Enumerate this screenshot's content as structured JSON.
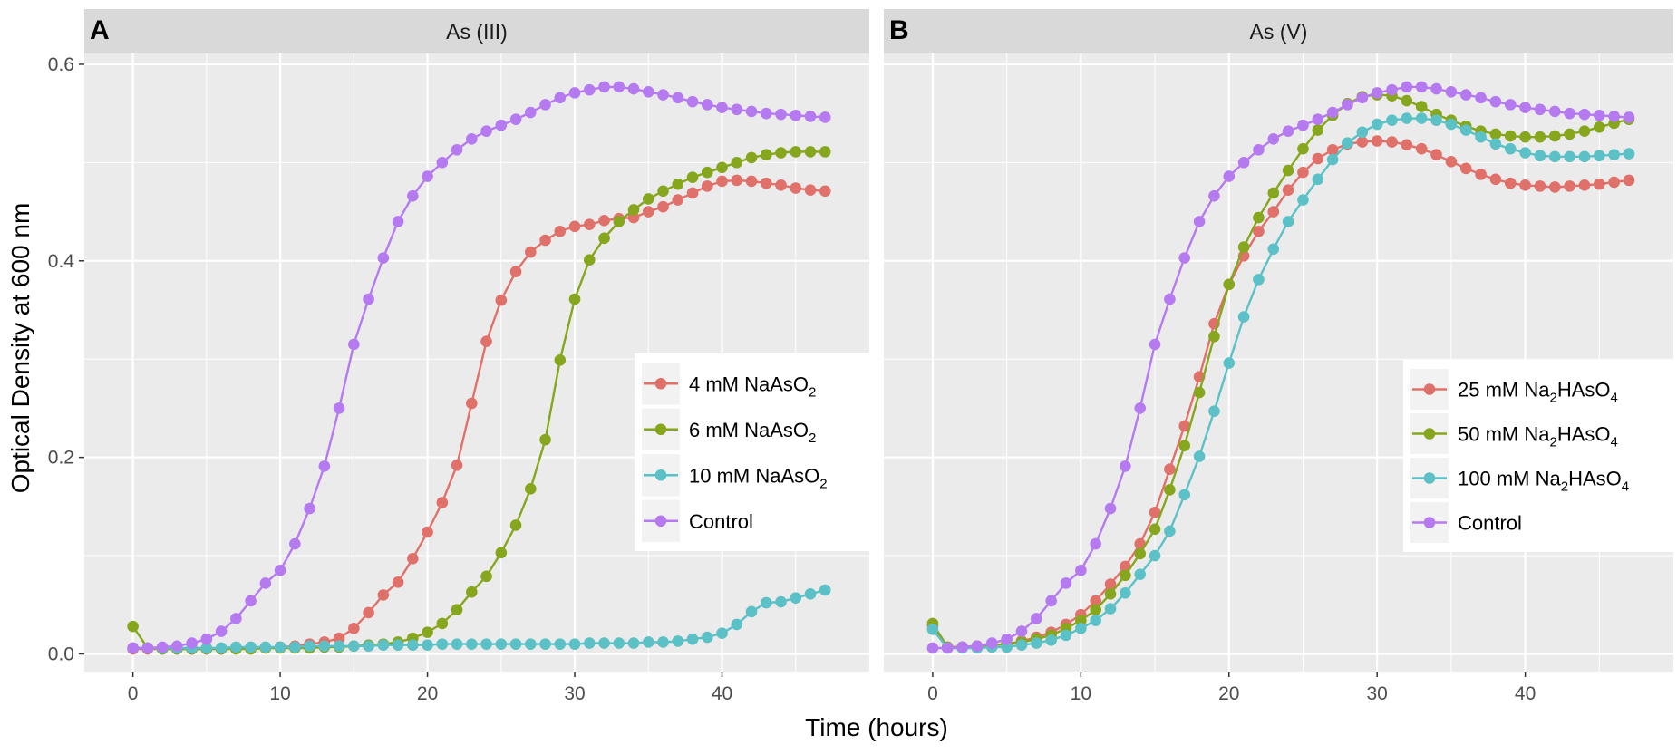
{
  "figure": {
    "xlabel": "Time (hours)",
    "ylabel": "Optical Density at 600 nm"
  },
  "colors": {
    "red": "#E0716A",
    "green": "#86A61D",
    "cyan": "#5BC1C6",
    "purple": "#B67AF0",
    "panel_bg": "#EBEBEB",
    "strip_bg": "#D9D9D9",
    "grid": "#FFFFFF"
  },
  "chart_data": [
    {
      "type": "line",
      "panel_letter": "A",
      "title": "As (III)",
      "xlabel": "Time (hours)",
      "ylabel": "Optical Density at 600 nm",
      "xlim": [
        -3.3,
        50
      ],
      "ylim": [
        -0.018,
        0.611
      ],
      "x_ticks": [
        "0",
        "10",
        "20",
        "30",
        "40"
      ],
      "y_ticks": [
        "0.0",
        "0.2",
        "0.4",
        "0.6"
      ],
      "legend_position": "right",
      "x": [
        0,
        1,
        2,
        3,
        4,
        5,
        6,
        7,
        8,
        9,
        10,
        11,
        12,
        13,
        14,
        15,
        16,
        17,
        18,
        19,
        20,
        21,
        22,
        23,
        24,
        25,
        26,
        27,
        28,
        29,
        30,
        31,
        32,
        33,
        34,
        35,
        36,
        37,
        38,
        39,
        40,
        41,
        42,
        43,
        44,
        45,
        46,
        47
      ],
      "series": [
        {
          "name": "4 mM NaAsO2",
          "label_main": "4 mM NaAsO",
          "label_sub": "2",
          "label_tail": "",
          "color": "#E0716A",
          "values": [
            0.005,
            0.005,
            0.005,
            0.005,
            0.005,
            0.005,
            0.005,
            0.006,
            0.006,
            0.006,
            0.007,
            0.008,
            0.01,
            0.012,
            0.016,
            0.026,
            0.042,
            0.06,
            0.073,
            0.097,
            0.124,
            0.154,
            0.192,
            0.255,
            0.318,
            0.36,
            0.389,
            0.409,
            0.421,
            0.43,
            0.435,
            0.437,
            0.441,
            0.443,
            0.444,
            0.45,
            0.455,
            0.462,
            0.469,
            0.476,
            0.481,
            0.482,
            0.481,
            0.479,
            0.477,
            0.474,
            0.472,
            0.471
          ]
        },
        {
          "name": "6 mM NaAsO2",
          "label_main": "6 mM NaAsO",
          "label_sub": "2",
          "label_tail": "",
          "color": "#86A61D",
          "values": [
            0.028,
            0.006,
            0.005,
            0.005,
            0.005,
            0.005,
            0.005,
            0.005,
            0.005,
            0.006,
            0.006,
            0.006,
            0.006,
            0.007,
            0.007,
            0.008,
            0.009,
            0.01,
            0.012,
            0.016,
            0.022,
            0.031,
            0.045,
            0.063,
            0.079,
            0.103,
            0.131,
            0.168,
            0.218,
            0.299,
            0.361,
            0.401,
            0.423,
            0.44,
            0.452,
            0.463,
            0.471,
            0.478,
            0.485,
            0.49,
            0.495,
            0.5,
            0.505,
            0.508,
            0.51,
            0.511,
            0.511,
            0.511
          ]
        },
        {
          "name": "10 mM NaAsO2",
          "label_main": "10 mM NaAsO",
          "label_sub": "2",
          "label_tail": "",
          "color": "#5BC1C6",
          "values": [
            0.006,
            0.006,
            0.006,
            0.006,
            0.006,
            0.006,
            0.006,
            0.007,
            0.007,
            0.007,
            0.007,
            0.007,
            0.008,
            0.008,
            0.008,
            0.008,
            0.008,
            0.009,
            0.009,
            0.009,
            0.009,
            0.01,
            0.01,
            0.01,
            0.01,
            0.01,
            0.01,
            0.01,
            0.01,
            0.01,
            0.01,
            0.011,
            0.011,
            0.011,
            0.011,
            0.012,
            0.012,
            0.013,
            0.015,
            0.017,
            0.021,
            0.03,
            0.043,
            0.052,
            0.053,
            0.057,
            0.061,
            0.065
          ]
        },
        {
          "name": "Control",
          "label_main": "Control",
          "label_sub": "",
          "label_tail": "",
          "color": "#B67AF0",
          "values": [
            0.006,
            0.006,
            0.007,
            0.008,
            0.011,
            0.015,
            0.023,
            0.036,
            0.054,
            0.072,
            0.085,
            0.112,
            0.148,
            0.191,
            0.25,
            0.315,
            0.361,
            0.403,
            0.44,
            0.466,
            0.486,
            0.5,
            0.513,
            0.524,
            0.532,
            0.538,
            0.544,
            0.551,
            0.559,
            0.566,
            0.571,
            0.574,
            0.577,
            0.577,
            0.575,
            0.572,
            0.569,
            0.566,
            0.562,
            0.559,
            0.556,
            0.554,
            0.552,
            0.55,
            0.549,
            0.548,
            0.547,
            0.546
          ]
        }
      ]
    },
    {
      "type": "line",
      "panel_letter": "B",
      "title": "As (V)",
      "xlabel": "Time (hours)",
      "ylabel": "Optical Density at 600 nm",
      "xlim": [
        -3.3,
        50
      ],
      "ylim": [
        -0.018,
        0.611
      ],
      "x_ticks": [
        "0",
        "10",
        "20",
        "30",
        "40"
      ],
      "y_ticks": [
        "0.0",
        "0.2",
        "0.4",
        "0.6"
      ],
      "legend_position": "right",
      "x": [
        0,
        1,
        2,
        3,
        4,
        5,
        6,
        7,
        8,
        9,
        10,
        11,
        12,
        13,
        14,
        15,
        16,
        17,
        18,
        19,
        20,
        21,
        22,
        23,
        24,
        25,
        26,
        27,
        28,
        29,
        30,
        31,
        32,
        33,
        34,
        35,
        36,
        37,
        38,
        39,
        40,
        41,
        42,
        43,
        44,
        45,
        46,
        47
      ],
      "series": [
        {
          "name": "25 mM Na2HAsO4",
          "label_main": "25 mM Na",
          "label_sub": "2",
          "label_tail": "HAsO",
          "label_sub2": "4",
          "color": "#E0716A",
          "values": [
            0.029,
            0.007,
            0.007,
            0.008,
            0.009,
            0.01,
            0.013,
            0.017,
            0.022,
            0.03,
            0.04,
            0.054,
            0.071,
            0.089,
            0.112,
            0.144,
            0.188,
            0.232,
            0.282,
            0.336,
            0.376,
            0.405,
            0.43,
            0.45,
            0.472,
            0.49,
            0.504,
            0.513,
            0.519,
            0.521,
            0.522,
            0.521,
            0.518,
            0.514,
            0.508,
            0.501,
            0.494,
            0.488,
            0.483,
            0.479,
            0.477,
            0.476,
            0.475,
            0.476,
            0.477,
            0.478,
            0.48,
            0.482
          ]
        },
        {
          "name": "50 mM Na2HAsO4",
          "label_main": "50 mM Na",
          "label_sub": "2",
          "label_tail": "HAsO",
          "label_sub2": "4",
          "color": "#86A61D",
          "values": [
            0.031,
            0.007,
            0.007,
            0.008,
            0.009,
            0.01,
            0.012,
            0.015,
            0.019,
            0.026,
            0.034,
            0.045,
            0.061,
            0.08,
            0.102,
            0.127,
            0.167,
            0.212,
            0.266,
            0.323,
            0.376,
            0.414,
            0.444,
            0.469,
            0.492,
            0.514,
            0.533,
            0.548,
            0.56,
            0.567,
            0.569,
            0.568,
            0.563,
            0.557,
            0.549,
            0.543,
            0.537,
            0.532,
            0.529,
            0.527,
            0.526,
            0.526,
            0.527,
            0.529,
            0.532,
            0.536,
            0.54,
            0.544
          ]
        },
        {
          "name": "100 mM Na2HAsO4",
          "label_main": "100 mM Na",
          "label_sub": "2",
          "label_tail": "HAsO",
          "label_sub2": "4",
          "color": "#5BC1C6",
          "values": [
            0.025,
            0.006,
            0.006,
            0.006,
            0.007,
            0.007,
            0.009,
            0.011,
            0.014,
            0.019,
            0.026,
            0.034,
            0.046,
            0.062,
            0.081,
            0.1,
            0.125,
            0.162,
            0.201,
            0.247,
            0.296,
            0.343,
            0.381,
            0.412,
            0.44,
            0.462,
            0.483,
            0.503,
            0.52,
            0.531,
            0.539,
            0.543,
            0.545,
            0.545,
            0.543,
            0.539,
            0.533,
            0.526,
            0.519,
            0.514,
            0.51,
            0.507,
            0.506,
            0.506,
            0.506,
            0.507,
            0.508,
            0.509
          ]
        },
        {
          "name": "Control",
          "label_main": "Control",
          "label_sub": "",
          "label_tail": "",
          "label_sub2": "",
          "color": "#B67AF0",
          "values": [
            0.006,
            0.006,
            0.007,
            0.008,
            0.011,
            0.015,
            0.023,
            0.036,
            0.054,
            0.072,
            0.085,
            0.112,
            0.148,
            0.191,
            0.25,
            0.315,
            0.361,
            0.403,
            0.44,
            0.466,
            0.486,
            0.5,
            0.513,
            0.524,
            0.532,
            0.538,
            0.544,
            0.551,
            0.559,
            0.566,
            0.571,
            0.574,
            0.577,
            0.577,
            0.575,
            0.572,
            0.569,
            0.566,
            0.562,
            0.559,
            0.556,
            0.554,
            0.552,
            0.55,
            0.549,
            0.548,
            0.547,
            0.546
          ]
        }
      ]
    }
  ]
}
